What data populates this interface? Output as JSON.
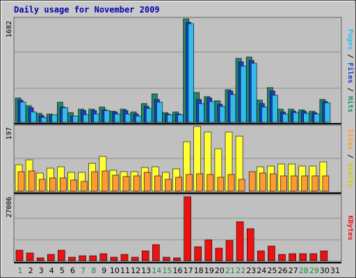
{
  "title": "Daily usage for November 2009",
  "colors": {
    "hits": "#1f8a6a",
    "files": "#1a3fd0",
    "pages": "#33bbee",
    "visits": "#ffff33",
    "sites": "#ff9933",
    "kbytes": "#ee1111",
    "weekend_tick": "#1a8a3a",
    "weekday_tick": "#000000",
    "separator": "#000000"
  },
  "panels": [
    {
      "id": "top",
      "ymax_label": "1682",
      "legend": [
        {
          "text": "Pages",
          "color": "#33bbee"
        },
        {
          "text": " / ",
          "color": "#000000"
        },
        {
          "text": "Files",
          "color": "#1a3fd0"
        },
        {
          "text": " / ",
          "color": "#000000"
        },
        {
          "text": "Hits",
          "color": "#1f8a6a"
        }
      ]
    },
    {
      "id": "mid",
      "ymax_label": "197",
      "legend": [
        {
          "text": "Sites",
          "color": "#ff9933"
        },
        {
          "text": " / ",
          "color": "#000000"
        },
        {
          "text": "Visits",
          "color": "#cccc00"
        }
      ]
    },
    {
      "id": "bot",
      "ymax_label": "27006",
      "legend": [
        {
          "text": "KBytes",
          "color": "#ee1111"
        }
      ]
    }
  ],
  "chart_data": {
    "type": "bar",
    "title": "Daily usage for November 2009",
    "categories": [
      "1",
      "2",
      "3",
      "4",
      "5",
      "6",
      "7",
      "8",
      "9",
      "10",
      "11",
      "12",
      "13",
      "14",
      "15",
      "16",
      "17",
      "18",
      "19",
      "20",
      "21",
      "22",
      "23",
      "24",
      "25",
      "26",
      "27",
      "28",
      "29",
      "30",
      "31"
    ],
    "weekend_days": [
      "1",
      "7",
      "8",
      "14",
      "15",
      "21",
      "22",
      "28",
      "29"
    ],
    "panels": [
      {
        "ymax": 1682,
        "ymax_label": "1682",
        "series": [
          {
            "name": "Hits",
            "values": [
              398,
              270,
              145,
              140,
              330,
              160,
              210,
              210,
              250,
              185,
              210,
              165,
              305,
              460,
              155,
              170,
              1682,
              480,
              420,
              350,
              535,
              1035,
              1065,
              360,
              560,
              220,
              210,
              200,
              185,
              370,
              0
            ]
          },
          {
            "name": "Files",
            "values": [
              360,
              240,
              115,
              115,
              250,
              100,
              190,
              190,
              205,
              165,
              190,
              130,
              265,
              370,
              130,
              135,
              1620,
              370,
              395,
              290,
              510,
              985,
              1000,
              300,
              505,
              170,
              180,
              175,
              160,
              340,
              0
            ]
          },
          {
            "name": "Pages",
            "values": [
              330,
              165,
              80,
              120,
              240,
              100,
              125,
              140,
              190,
              130,
              130,
              100,
              225,
              330,
              125,
              120,
              1605,
              305,
              340,
              260,
              455,
              920,
              955,
              250,
              445,
              135,
              160,
              145,
              140,
              320,
              0
            ]
          }
        ]
      },
      {
        "ymax": 197,
        "ymax_label": "197",
        "series": [
          {
            "name": "Visits",
            "values": [
              80,
              95,
              55,
              70,
              75,
              58,
              57,
              85,
              105,
              63,
              60,
              60,
              73,
              75,
              57,
              67,
              150,
              197,
              180,
              130,
              180,
              168,
              0,
              75,
              77,
              83,
              83,
              77,
              77,
              88,
              0
            ]
          },
          {
            "name": "Sites",
            "values": [
              60,
              62,
              36,
              40,
              40,
              34,
              30,
              60,
              62,
              48,
              45,
              46,
              58,
              46,
              37,
              42,
              50,
              52,
              50,
              42,
              50,
              37,
              60,
              55,
              53,
              46,
              47,
              46,
              46,
              46,
              0
            ]
          }
        ]
      },
      {
        "ymax": 27006,
        "ymax_label": "27006",
        "series": [
          {
            "name": "KBytes",
            "values": [
              4500,
              3200,
              1200,
              2600,
              4500,
              1400,
              2100,
              2000,
              3000,
              1600,
              2700,
              1600,
              4000,
              6800,
              1500,
              1300,
              27006,
              6000,
              8800,
              5400,
              8600,
              16500,
              13500,
              4100,
              6300,
              2700,
              2900,
              2800,
              2800,
              4100,
              0
            ]
          }
        ]
      }
    ],
    "legend": [
      "Pages / Files / Hits",
      "Sites / Visits",
      "KBytes"
    ],
    "grid": true
  }
}
